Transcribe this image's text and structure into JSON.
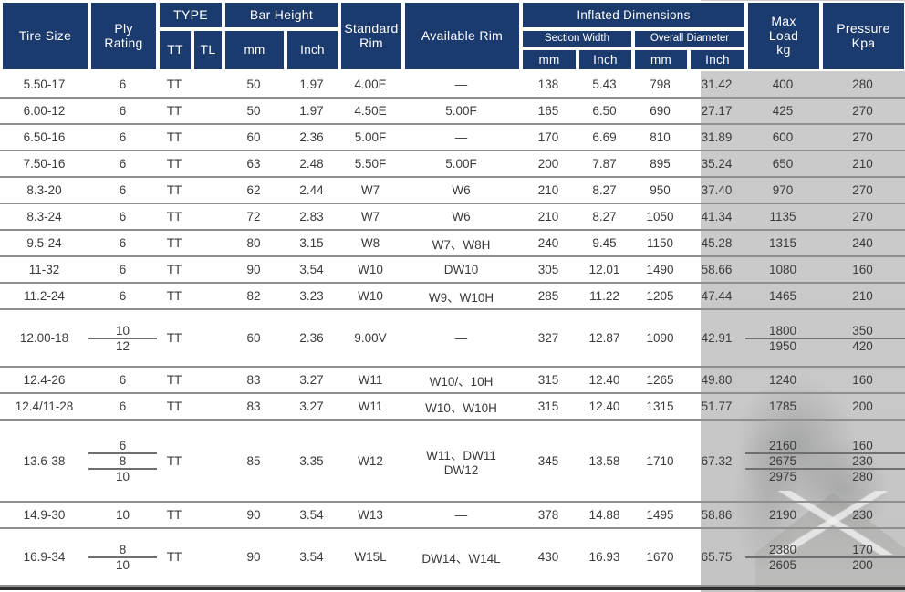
{
  "colors": {
    "header_bg": "#1b3a6e",
    "header_text": "#ffffff",
    "body_text": "#3a3a3a",
    "row_line": "#8f8f8f",
    "subline": "#6f6f6f",
    "overlay": "#c9c9c9",
    "bottom_line": "#2e2e2e"
  },
  "table": {
    "header": {
      "tire_size": "Tire Size",
      "ply_rating": "Ply\nRating",
      "type": "TYPE",
      "tt": "TT",
      "tl": "TL",
      "bar_height": "Bar Height",
      "mm": "mm",
      "inch": "Inch",
      "standard_rim": "Standard\nRim",
      "available_rim": "Available Rim",
      "inflated_dimensions": "Inflated Dimensions",
      "section_width": "Section Width",
      "overall_diameter": "Overall Diameter",
      "max_load": "Max\nLoad\nkg",
      "pressure": "Pressure\nKpa"
    },
    "rows": [
      {
        "tire_size": "5.50-17",
        "ply": [
          "6"
        ],
        "type": "TT",
        "bar_mm": "50",
        "bar_inch": "1.97",
        "std_rim": "4.00E",
        "avail_rim": [
          "—"
        ],
        "sw_mm": "138",
        "sw_inch": "5.43",
        "od_mm": "798",
        "od_inch": "31.42",
        "load": [
          "400"
        ],
        "pressure": [
          "280"
        ]
      },
      {
        "tire_size": "6.00-12",
        "ply": [
          "6"
        ],
        "type": "TT",
        "bar_mm": "50",
        "bar_inch": "1.97",
        "std_rim": "4.50E",
        "avail_rim": [
          "5.00F"
        ],
        "sw_mm": "165",
        "sw_inch": "6.50",
        "od_mm": "690",
        "od_inch": "27.17",
        "load": [
          "425"
        ],
        "pressure": [
          "270"
        ]
      },
      {
        "tire_size": "6.50-16",
        "ply": [
          "6"
        ],
        "type": "TT",
        "bar_mm": "60",
        "bar_inch": "2.36",
        "std_rim": "5.00F",
        "avail_rim": [
          "—"
        ],
        "sw_mm": "170",
        "sw_inch": "6.69",
        "od_mm": "810",
        "od_inch": "31.89",
        "load": [
          "600"
        ],
        "pressure": [
          "270"
        ]
      },
      {
        "tire_size": "7.50-16",
        "ply": [
          "6"
        ],
        "type": "TT",
        "bar_mm": "63",
        "bar_inch": "2.48",
        "std_rim": "5.50F",
        "avail_rim": [
          "5.00F"
        ],
        "sw_mm": "200",
        "sw_inch": "7.87",
        "od_mm": "895",
        "od_inch": "35.24",
        "load": [
          "650"
        ],
        "pressure": [
          "210"
        ]
      },
      {
        "tire_size": "8.3-20",
        "ply": [
          "6"
        ],
        "type": "TT",
        "bar_mm": "62",
        "bar_inch": "2.44",
        "std_rim": "W7",
        "avail_rim": [
          "W6"
        ],
        "sw_mm": "210",
        "sw_inch": "8.27",
        "od_mm": "950",
        "od_inch": "37.40",
        "load": [
          "970"
        ],
        "pressure": [
          "270"
        ]
      },
      {
        "tire_size": "8.3-24",
        "ply": [
          "6"
        ],
        "type": "TT",
        "bar_mm": "72",
        "bar_inch": "2.83",
        "std_rim": "W7",
        "avail_rim": [
          "W6"
        ],
        "sw_mm": "210",
        "sw_inch": "8.27",
        "od_mm": "1050",
        "od_inch": "41.34",
        "load": [
          "1135"
        ],
        "pressure": [
          "270"
        ]
      },
      {
        "tire_size": "9.5-24",
        "ply": [
          "6"
        ],
        "type": "TT",
        "bar_mm": "80",
        "bar_inch": "3.15",
        "std_rim": "W8",
        "avail_rim": [
          "W7、W8H"
        ],
        "sw_mm": "240",
        "sw_inch": "9.45",
        "od_mm": "1150",
        "od_inch": "45.28",
        "load": [
          "1315"
        ],
        "pressure": [
          "240"
        ]
      },
      {
        "tire_size": "11-32",
        "ply": [
          "6"
        ],
        "type": "TT",
        "bar_mm": "90",
        "bar_inch": "3.54",
        "std_rim": "W10",
        "avail_rim": [
          "DW10"
        ],
        "sw_mm": "305",
        "sw_inch": "12.01",
        "od_mm": "1490",
        "od_inch": "58.66",
        "load": [
          "1080"
        ],
        "pressure": [
          "160"
        ]
      },
      {
        "tire_size": "11.2-24",
        "ply": [
          "6"
        ],
        "type": "TT",
        "bar_mm": "82",
        "bar_inch": "3.23",
        "std_rim": "W10",
        "avail_rim": [
          "W9、W10H"
        ],
        "sw_mm": "285",
        "sw_inch": "11.22",
        "od_mm": "1205",
        "od_inch": "47.44",
        "load": [
          "1465"
        ],
        "pressure": [
          "210"
        ]
      },
      {
        "tire_size": "12.00-18",
        "ply": [
          "10",
          "12"
        ],
        "type": "TT",
        "bar_mm": "60",
        "bar_inch": "2.36",
        "std_rim": "9.00V",
        "avail_rim": [
          "—"
        ],
        "sw_mm": "327",
        "sw_inch": "12.87",
        "od_mm": "1090",
        "od_inch": "42.91",
        "load": [
          "1800",
          "1950"
        ],
        "pressure": [
          "350",
          "420"
        ]
      },
      {
        "tire_size": "12.4-26",
        "ply": [
          "6"
        ],
        "type": "TT",
        "bar_mm": "83",
        "bar_inch": "3.27",
        "std_rim": "W11",
        "avail_rim": [
          "W10/、10H"
        ],
        "sw_mm": "315",
        "sw_inch": "12.40",
        "od_mm": "1265",
        "od_inch": "49.80",
        "load": [
          "1240"
        ],
        "pressure": [
          "160"
        ]
      },
      {
        "tire_size": "12.4/11-28",
        "ply": [
          "6"
        ],
        "type": "TT",
        "bar_mm": "83",
        "bar_inch": "3.27",
        "std_rim": "W11",
        "avail_rim": [
          "W10、W10H"
        ],
        "sw_mm": "315",
        "sw_inch": "12.40",
        "od_mm": "1315",
        "od_inch": "51.77",
        "load": [
          "1785"
        ],
        "pressure": [
          "200"
        ]
      },
      {
        "tire_size": "13.6-38",
        "ply": [
          "6",
          "8",
          "10"
        ],
        "type": "TT",
        "bar_mm": "85",
        "bar_inch": "3.35",
        "std_rim": "W12",
        "avail_rim": [
          "W11、DW11",
          "DW12"
        ],
        "sw_mm": "345",
        "sw_inch": "13.58",
        "od_mm": "1710",
        "od_inch": "67.32",
        "load": [
          "2160",
          "2675",
          "2975"
        ],
        "pressure": [
          "160",
          "230",
          "280"
        ]
      },
      {
        "tire_size": "14.9-30",
        "ply": [
          "10"
        ],
        "type": "TT",
        "bar_mm": "90",
        "bar_inch": "3.54",
        "std_rim": "W13",
        "avail_rim": [
          "—"
        ],
        "sw_mm": "378",
        "sw_inch": "14.88",
        "od_mm": "1495",
        "od_inch": "58.86",
        "load": [
          "2190"
        ],
        "pressure": [
          "230"
        ]
      },
      {
        "tire_size": "16.9-34",
        "ply": [
          "8",
          "10"
        ],
        "type": "TT",
        "bar_mm": "90",
        "bar_inch": "3.54",
        "std_rim": "W15L",
        "avail_rim": [
          "DW14、W14L"
        ],
        "sw_mm": "430",
        "sw_inch": "16.93",
        "od_mm": "1670",
        "od_inch": "65.75",
        "load": [
          "2380",
          "2605"
        ],
        "pressure": [
          "170",
          "200"
        ]
      }
    ]
  }
}
